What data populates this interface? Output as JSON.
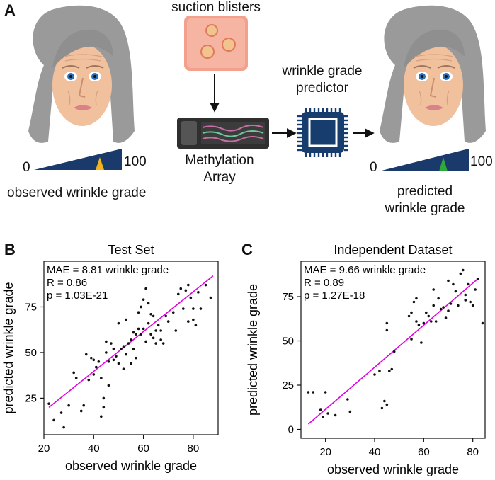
{
  "panels": {
    "a": "A",
    "b": "B",
    "c": "C"
  },
  "schematic": {
    "suction_label": "suction blisters",
    "methylation_label_line1": "Methylation",
    "methylation_label_line2": "Array",
    "predictor_label_line1": "wrinkle grade",
    "predictor_label_line2": "predictor",
    "observed_caption": "observed wrinkle grade",
    "predicted_caption_line1": "predicted",
    "predicted_caption_line2": "wrinkle grade",
    "scale_min": "0",
    "scale_max": "100",
    "colors": {
      "scale": "#1a3a6b",
      "observed_marker": "#f2b41c",
      "predicted_marker": "#2ea83a",
      "chip": "#163d6e"
    }
  },
  "chart_data": [
    {
      "type": "scatter",
      "title": "Test Set",
      "xlabel": "observed wrinkle grade",
      "ylabel": "predicted wrinkle grade",
      "xlim": [
        20,
        90
      ],
      "ylim": [
        5,
        100
      ],
      "xticks": [
        20,
        40,
        60,
        80
      ],
      "yticks": [
        25,
        50,
        75
      ],
      "stats": [
        "MAE = 8.81 wrinkle grade",
        "R = 0.86",
        "p = 1.03E-21"
      ],
      "fit_line": {
        "x": [
          22,
          88
        ],
        "y": [
          20,
          92
        ],
        "color": "#e000e0"
      },
      "points": [
        [
          22,
          22
        ],
        [
          24,
          13
        ],
        [
          27,
          17
        ],
        [
          28,
          9
        ],
        [
          30,
          21
        ],
        [
          32,
          39
        ],
        [
          33,
          36
        ],
        [
          35,
          18
        ],
        [
          36,
          21
        ],
        [
          37,
          49
        ],
        [
          38,
          35
        ],
        [
          39,
          47
        ],
        [
          40,
          46
        ],
        [
          40,
          38
        ],
        [
          41,
          42
        ],
        [
          42,
          45
        ],
        [
          43,
          36
        ],
        [
          43,
          15
        ],
        [
          44,
          25
        ],
        [
          44,
          20
        ],
        [
          45,
          56
        ],
        [
          45,
          50
        ],
        [
          46,
          45
        ],
        [
          46,
          32
        ],
        [
          47,
          55
        ],
        [
          48,
          52
        ],
        [
          48,
          46
        ],
        [
          49,
          48
        ],
        [
          50,
          66
        ],
        [
          50,
          44
        ],
        [
          51,
          52
        ],
        [
          52,
          53
        ],
        [
          52,
          41
        ],
        [
          53,
          68
        ],
        [
          53,
          49
        ],
        [
          54,
          55
        ],
        [
          55,
          57
        ],
        [
          55,
          44
        ],
        [
          56,
          61
        ],
        [
          56,
          52
        ],
        [
          57,
          60
        ],
        [
          57,
          47
        ],
        [
          58,
          72
        ],
        [
          58,
          63
        ],
        [
          59,
          75
        ],
        [
          59,
          60
        ],
        [
          60,
          79
        ],
        [
          60,
          63
        ],
        [
          61,
          85
        ],
        [
          61,
          56
        ],
        [
          62,
          77
        ],
        [
          62,
          66
        ],
        [
          63,
          71
        ],
        [
          63,
          60
        ],
        [
          64,
          70
        ],
        [
          64,
          58
        ],
        [
          65,
          62
        ],
        [
          65,
          55
        ],
        [
          66,
          65
        ],
        [
          67,
          62
        ],
        [
          67,
          57
        ],
        [
          68,
          55
        ],
        [
          69,
          70
        ],
        [
          70,
          67
        ],
        [
          72,
          72
        ],
        [
          73,
          62
        ],
        [
          74,
          82
        ],
        [
          75,
          85
        ],
        [
          76,
          74
        ],
        [
          77,
          84
        ],
        [
          78,
          87
        ],
        [
          78,
          67
        ],
        [
          79,
          80
        ],
        [
          80,
          68
        ],
        [
          80,
          74
        ],
        [
          81,
          65
        ],
        [
          82,
          83
        ],
        [
          83,
          74
        ],
        [
          85,
          87
        ],
        [
          87,
          80
        ]
      ]
    },
    {
      "type": "scatter",
      "title": "Independent Dataset",
      "xlabel": "observed wrinkle grade",
      "ylabel": "predicted wrinkle grade",
      "xlim": [
        10,
        85
      ],
      "ylim": [
        -5,
        95
      ],
      "xticks": [
        20,
        40,
        60,
        80
      ],
      "yticks": [
        0,
        25,
        50,
        75
      ],
      "stats": [
        "MAE = 9.66 wrinkle grade",
        "R = 0.89",
        "p = 1.27E-18"
      ],
      "fit_line": {
        "x": [
          13,
          82
        ],
        "y": [
          3,
          85
        ],
        "color": "#e000e0"
      },
      "points": [
        [
          13,
          21
        ],
        [
          15,
          21
        ],
        [
          18,
          11
        ],
        [
          19,
          7
        ],
        [
          20,
          21
        ],
        [
          21,
          9
        ],
        [
          24,
          8
        ],
        [
          29,
          17
        ],
        [
          30,
          10
        ],
        [
          40,
          31
        ],
        [
          42,
          33
        ],
        [
          43,
          12
        ],
        [
          44,
          16
        ],
        [
          45,
          14
        ],
        [
          45,
          60
        ],
        [
          45,
          56
        ],
        [
          46,
          33
        ],
        [
          47,
          34
        ],
        [
          48,
          44
        ],
        [
          54,
          64
        ],
        [
          55,
          66
        ],
        [
          55,
          51
        ],
        [
          56,
          72
        ],
        [
          57,
          74
        ],
        [
          57,
          61
        ],
        [
          58,
          59
        ],
        [
          59,
          49
        ],
        [
          60,
          60
        ],
        [
          61,
          66
        ],
        [
          62,
          64
        ],
        [
          63,
          61
        ],
        [
          64,
          79
        ],
        [
          64,
          70
        ],
        [
          65,
          61
        ],
        [
          66,
          74
        ],
        [
          67,
          68
        ],
        [
          68,
          69
        ],
        [
          69,
          63
        ],
        [
          70,
          84
        ],
        [
          70,
          67
        ],
        [
          71,
          71
        ],
        [
          72,
          82
        ],
        [
          73,
          78
        ],
        [
          74,
          70
        ],
        [
          75,
          88
        ],
        [
          76,
          90
        ],
        [
          77,
          73
        ],
        [
          77,
          76
        ],
        [
          78,
          82
        ],
        [
          79,
          72
        ],
        [
          80,
          70
        ],
        [
          81,
          79
        ],
        [
          82,
          85
        ],
        [
          84,
          60
        ]
      ]
    }
  ]
}
